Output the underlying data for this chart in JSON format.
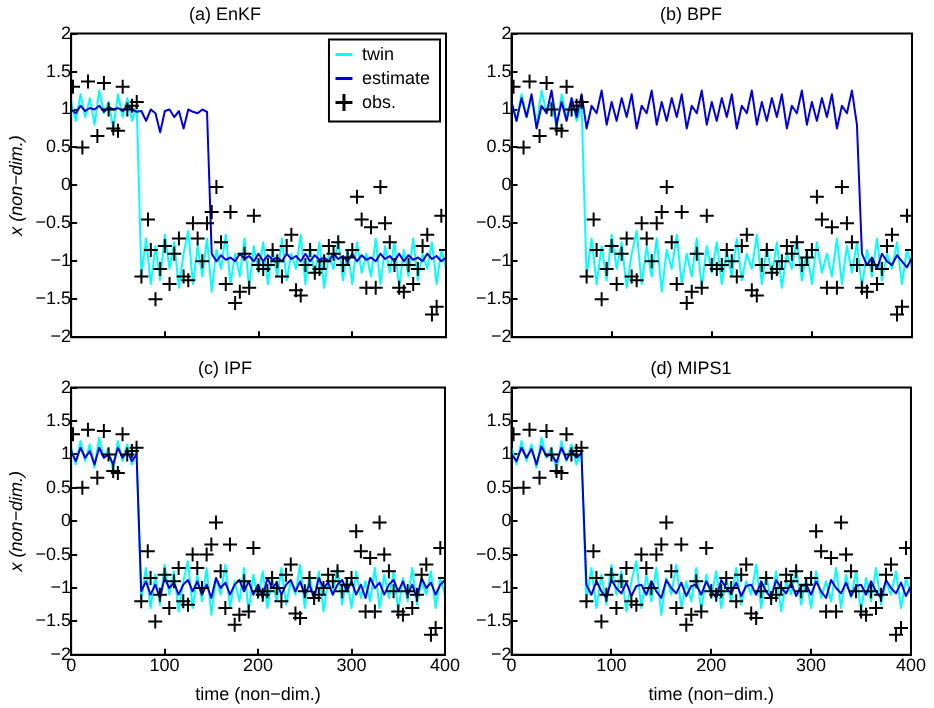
{
  "chart_data": [
    {
      "type": "line",
      "title": "(a) EnKF",
      "ylabel": "x (non−dim.)",
      "xlim": [
        0,
        400
      ],
      "xticks": [
        0,
        100,
        200,
        300,
        400
      ],
      "ylim": [
        -2,
        2
      ],
      "yticks": [
        -2,
        -1.5,
        -1,
        -0.5,
        0,
        0.5,
        1,
        1.5,
        2
      ],
      "tick_labels": "y",
      "grid": false,
      "legend": "top right",
      "x": [
        0,
        5,
        10,
        15,
        20,
        25,
        30,
        35,
        40,
        45,
        50,
        55,
        60,
        65,
        70,
        75,
        80,
        85,
        90,
        95,
        100,
        105,
        110,
        115,
        120,
        125,
        130,
        135,
        140,
        145,
        150,
        155,
        160,
        165,
        170,
        175,
        180,
        185,
        190,
        195,
        200,
        205,
        210,
        215,
        220,
        225,
        230,
        235,
        240,
        245,
        250,
        255,
        260,
        265,
        270,
        275,
        280,
        285,
        290,
        295,
        300,
        305,
        310,
        315,
        320,
        325,
        330,
        335,
        340,
        345,
        350,
        355,
        360,
        365,
        370,
        375,
        380,
        385,
        390,
        395,
        400
      ],
      "series": [
        {
          "name": "twin",
          "color": "#00ffff",
          "values": [
            1.1,
            0.85,
            1.2,
            0.9,
            1.15,
            0.8,
            1.25,
            0.95,
            1.1,
            0.75,
            1.2,
            0.9,
            1.15,
            0.85,
            1.05,
            -1.2,
            -0.7,
            -1.3,
            -0.8,
            -1.25,
            -0.65,
            -1.1,
            -0.75,
            -1.35,
            -0.9,
            -0.6,
            -1.3,
            -0.8,
            -1.2,
            -0.7,
            -1.4,
            -0.85,
            -1.1,
            -0.65,
            -1.3,
            -0.9,
            -1.2,
            -0.7,
            -1.35,
            -0.8,
            -1.15,
            -0.75,
            -1.3,
            -0.85,
            -1.2,
            -0.7,
            -1.25,
            -0.9,
            -1.1,
            -0.65,
            -1.3,
            -0.8,
            -1.2,
            -0.75,
            -1.35,
            -0.9,
            -1.1,
            -0.7,
            -1.25,
            -0.85,
            -1.3,
            -0.75,
            -1.15,
            -0.9,
            -1.2,
            -0.7,
            -1.3,
            -0.8,
            -1.15,
            -0.75,
            -1.35,
            -0.85,
            -1.2,
            -0.7,
            -1.25,
            -0.9,
            -1.1,
            -0.75,
            -1.3,
            -0.85,
            -1.1
          ]
        },
        {
          "name": "estimate",
          "color": "#0000dd",
          "values": [
            1.0,
            0.95,
            1.05,
            0.98,
            1.02,
            1.0,
            1.05,
            0.97,
            1.03,
            1.0,
            1.02,
            0.98,
            1.05,
            1.0,
            0.97,
            0.98,
            0.85,
            1.0,
            0.95,
            0.7,
            0.98,
            1.0,
            0.9,
            0.98,
            0.75,
            1.0,
            0.97,
            0.95,
            1.0,
            0.97,
            -0.9,
            -1.0,
            -0.92,
            -0.98,
            -0.95,
            -1.0,
            -0.9,
            -0.97,
            -0.93,
            -1.0,
            -0.9,
            -1.0,
            -0.92,
            -0.98,
            -0.95,
            -1.0,
            -0.9,
            -0.97,
            -0.93,
            -1.0,
            -0.9,
            -1.0,
            -0.92,
            -0.98,
            -0.95,
            -1.0,
            -0.9,
            -0.97,
            -0.93,
            -1.0,
            -0.9,
            -1.0,
            -0.92,
            -0.98,
            -0.95,
            -1.0,
            -0.9,
            -0.97,
            -0.93,
            -1.0,
            -0.9,
            -1.0,
            -0.92,
            -0.98,
            -0.95,
            -1.0,
            -0.9,
            -0.97,
            -0.93,
            -1.0,
            -0.95
          ]
        },
        {
          "name": "obs.",
          "type": "scatter",
          "marker": "cross",
          "color": "#000000",
          "x": [
            2,
            12,
            18,
            28,
            35,
            40,
            45,
            50,
            55,
            60,
            65,
            70,
            75,
            82,
            85,
            90,
            95,
            100,
            105,
            110,
            115,
            120,
            125,
            130,
            135,
            140,
            145,
            150,
            155,
            160,
            165,
            170,
            175,
            180,
            185,
            190,
            195,
            200,
            205,
            210,
            215,
            220,
            225,
            230,
            235,
            240,
            245,
            250,
            255,
            260,
            265,
            270,
            275,
            280,
            285,
            290,
            295,
            300,
            305,
            310,
            315,
            320,
            325,
            330,
            335,
            340,
            345,
            350,
            355,
            360,
            365,
            370,
            375,
            380,
            385,
            390,
            395,
            400
          ],
          "values": [
            1.3,
            0.5,
            1.37,
            0.65,
            1.35,
            1.0,
            0.75,
            0.72,
            1.3,
            1.0,
            1.05,
            1.1,
            -1.2,
            -0.45,
            -0.85,
            -1.5,
            -1.1,
            -0.8,
            -1.3,
            -0.9,
            -0.7,
            -1.2,
            -1.25,
            -0.5,
            -0.7,
            -1.0,
            -0.5,
            -0.35,
            -0.02,
            -0.75,
            -1.3,
            -0.35,
            -1.55,
            -1.4,
            -0.9,
            -1.35,
            -0.4,
            -1.05,
            -1.1,
            -1.05,
            -0.85,
            -1.0,
            -1.2,
            -0.8,
            -0.65,
            -1.38,
            -1.45,
            -1.05,
            -0.85,
            -1.15,
            -1.1,
            -1.0,
            -0.8,
            -0.9,
            -0.75,
            -1.05,
            -0.95,
            -0.85,
            -0.15,
            -0.45,
            -1.35,
            -0.55,
            -1.35,
            -0.02,
            -0.5,
            -0.75,
            -1.05,
            -1.35,
            -1.4,
            -1.05,
            -1.3,
            -1.1,
            -0.8,
            -0.65,
            -1.7,
            -1.6,
            -0.4,
            -0.85
          ]
        }
      ]
    },
    {
      "type": "line",
      "title": "(b) BPF",
      "xlim": [
        0,
        400
      ],
      "xticks": [
        0,
        100,
        200,
        300,
        400
      ],
      "ylim": [
        -2,
        2
      ],
      "yticks": [
        -2,
        -1.5,
        -1,
        -0.5,
        0,
        0.5,
        1,
        1.5,
        2
      ],
      "tick_labels": "y",
      "grid": false,
      "x": [
        0,
        5,
        10,
        15,
        20,
        25,
        30,
        35,
        40,
        45,
        50,
        55,
        60,
        65,
        70,
        75,
        80,
        85,
        90,
        95,
        100,
        105,
        110,
        115,
        120,
        125,
        130,
        135,
        140,
        145,
        150,
        155,
        160,
        165,
        170,
        175,
        180,
        185,
        190,
        195,
        200,
        205,
        210,
        215,
        220,
        225,
        230,
        235,
        240,
        245,
        250,
        255,
        260,
        265,
        270,
        275,
        280,
        285,
        290,
        295,
        300,
        305,
        310,
        315,
        320,
        325,
        330,
        335,
        340,
        345,
        350,
        355,
        360,
        365,
        370,
        375,
        380,
        385,
        390,
        395,
        400
      ],
      "series": [
        {
          "color": "#00ffff",
          "values": [
            1.1,
            0.85,
            1.2,
            0.9,
            1.15,
            0.8,
            1.25,
            0.95,
            1.1,
            0.75,
            1.2,
            0.9,
            1.15,
            0.85,
            1.05,
            -1.2,
            -0.7,
            -1.3,
            -0.8,
            -1.25,
            -0.65,
            -1.1,
            -0.75,
            -1.35,
            -0.9,
            -0.6,
            -1.3,
            -0.8,
            -1.2,
            -0.7,
            -1.4,
            -0.85,
            -1.1,
            -0.65,
            -1.3,
            -0.9,
            -1.2,
            -0.7,
            -1.35,
            -0.8,
            -1.15,
            -0.75,
            -1.3,
            -0.85,
            -1.2,
            -0.7,
            -1.25,
            -0.9,
            -1.1,
            -0.65,
            -1.3,
            -0.8,
            -1.2,
            -0.75,
            -1.35,
            -0.9,
            -1.1,
            -0.7,
            -1.25,
            -0.85,
            -1.3,
            -0.75,
            -1.15,
            -0.9,
            -1.2,
            -0.7,
            -1.3,
            -0.8,
            -1.15,
            -0.75,
            -1.35,
            -0.85,
            -1.2,
            -0.7,
            -1.25,
            -0.9,
            -1.1,
            -0.75,
            -1.3,
            -0.85,
            -1.1
          ]
        },
        {
          "color": "#0000dd",
          "values": [
            1.1,
            0.85,
            1.15,
            0.9,
            1.2,
            0.75,
            1.05,
            0.95,
            1.25,
            0.8,
            1.1,
            0.85,
            1.15,
            0.9,
            1.2,
            0.75,
            1.05,
            0.95,
            1.25,
            0.8,
            1.1,
            0.85,
            1.15,
            0.9,
            1.2,
            0.75,
            1.05,
            0.95,
            1.25,
            0.8,
            1.1,
            0.85,
            1.15,
            0.9,
            1.2,
            0.75,
            1.05,
            0.95,
            1.25,
            0.8,
            1.1,
            0.85,
            1.15,
            0.9,
            1.2,
            0.75,
            1.05,
            0.95,
            1.25,
            0.8,
            1.1,
            0.85,
            1.15,
            0.9,
            1.2,
            0.75,
            1.05,
            0.95,
            1.25,
            0.8,
            1.1,
            0.85,
            1.15,
            0.9,
            1.2,
            0.75,
            1.05,
            0.95,
            1.25,
            0.8,
            -0.9,
            -1.05,
            -0.95,
            -1.1,
            -0.9,
            -1.0,
            -1.05,
            -0.92,
            -1.0,
            -1.08,
            -0.95
          ]
        },
        {
          "type": "scatter",
          "marker": "cross",
          "color": "#000000",
          "x": [
            2,
            12,
            18,
            28,
            35,
            40,
            45,
            50,
            55,
            60,
            65,
            70,
            75,
            82,
            85,
            90,
            95,
            100,
            105,
            110,
            115,
            120,
            125,
            130,
            135,
            140,
            145,
            150,
            155,
            160,
            165,
            170,
            175,
            180,
            185,
            190,
            195,
            200,
            205,
            210,
            215,
            220,
            225,
            230,
            235,
            240,
            245,
            250,
            255,
            260,
            265,
            270,
            275,
            280,
            285,
            290,
            295,
            300,
            305,
            310,
            315,
            320,
            325,
            330,
            335,
            340,
            345,
            350,
            355,
            360,
            365,
            370,
            375,
            380,
            385,
            390,
            395,
            400
          ],
          "values": [
            1.3,
            0.5,
            1.37,
            0.65,
            1.35,
            1.0,
            0.75,
            0.72,
            1.3,
            1.0,
            1.05,
            1.1,
            -1.2,
            -0.45,
            -0.85,
            -1.5,
            -1.1,
            -0.8,
            -1.3,
            -0.9,
            -0.7,
            -1.2,
            -1.25,
            -0.5,
            -0.7,
            -1.0,
            -0.5,
            -0.35,
            -0.02,
            -0.75,
            -1.3,
            -0.35,
            -1.55,
            -1.4,
            -0.9,
            -1.35,
            -0.4,
            -1.05,
            -1.1,
            -1.05,
            -0.85,
            -1.0,
            -1.2,
            -0.8,
            -0.65,
            -1.38,
            -1.45,
            -1.05,
            -0.85,
            -1.15,
            -1.1,
            -1.0,
            -0.8,
            -0.9,
            -0.75,
            -1.05,
            -0.95,
            -0.85,
            -0.15,
            -0.45,
            -1.35,
            -0.55,
            -1.35,
            -0.02,
            -0.5,
            -0.75,
            -1.05,
            -1.35,
            -1.4,
            -1.05,
            -1.3,
            -1.1,
            -0.8,
            -0.65,
            -1.7,
            -1.6,
            -0.4,
            -0.85
          ]
        }
      ]
    },
    {
      "type": "line",
      "title": "(c) IPF",
      "xlabel": "time (non−dim.)",
      "ylabel": "x (non−dim.)",
      "xlim": [
        0,
        400
      ],
      "xticks": [
        0,
        100,
        200,
        300,
        400
      ],
      "ylim": [
        -2,
        2
      ],
      "yticks": [
        -2,
        -1.5,
        -1,
        -0.5,
        0,
        0.5,
        1,
        1.5,
        2
      ],
      "grid": false,
      "x": [
        0,
        5,
        10,
        15,
        20,
        25,
        30,
        35,
        40,
        45,
        50,
        55,
        60,
        65,
        70,
        75,
        80,
        85,
        90,
        95,
        100,
        105,
        110,
        115,
        120,
        125,
        130,
        135,
        140,
        145,
        150,
        155,
        160,
        165,
        170,
        175,
        180,
        185,
        190,
        195,
        200,
        205,
        210,
        215,
        220,
        225,
        230,
        235,
        240,
        245,
        250,
        255,
        260,
        265,
        270,
        275,
        280,
        285,
        290,
        295,
        300,
        305,
        310,
        315,
        320,
        325,
        330,
        335,
        340,
        345,
        350,
        355,
        360,
        365,
        370,
        375,
        380,
        385,
        390,
        395,
        400
      ],
      "series": [
        {
          "color": "#00ffff",
          "values": [
            1.1,
            0.85,
            1.2,
            0.9,
            1.15,
            0.8,
            1.25,
            0.95,
            1.1,
            0.75,
            1.2,
            0.9,
            1.15,
            0.85,
            1.05,
            -1.2,
            -0.7,
            -1.3,
            -0.8,
            -1.25,
            -0.65,
            -1.1,
            -0.75,
            -1.35,
            -0.9,
            -0.6,
            -1.3,
            -0.8,
            -1.2,
            -0.7,
            -1.4,
            -0.85,
            -1.1,
            -0.65,
            -1.3,
            -0.9,
            -1.2,
            -0.7,
            -1.35,
            -0.8,
            -1.15,
            -0.75,
            -1.3,
            -0.85,
            -1.2,
            -0.7,
            -1.25,
            -0.9,
            -1.1,
            -0.65,
            -1.3,
            -0.8,
            -1.2,
            -0.75,
            -1.35,
            -0.9,
            -1.1,
            -0.7,
            -1.25,
            -0.85,
            -1.3,
            -0.75,
            -1.15,
            -0.9,
            -1.2,
            -0.7,
            -1.3,
            -0.8,
            -1.15,
            -0.75,
            -1.35,
            -0.85,
            -1.2,
            -0.7,
            -1.25,
            -0.9,
            -1.1,
            -0.75,
            -1.3,
            -0.85,
            -1.1
          ]
        },
        {
          "color": "#0000dd",
          "values": [
            1.05,
            0.9,
            1.1,
            0.95,
            1.05,
            0.85,
            1.1,
            0.95,
            1.0,
            0.85,
            1.1,
            0.95,
            1.05,
            0.9,
            1.0,
            -1.05,
            -0.9,
            -1.1,
            -0.95,
            -1.15,
            -0.85,
            -1.0,
            -0.92,
            -1.1,
            -0.95,
            -0.88,
            -1.05,
            -0.9,
            -1.1,
            -0.95,
            -1.15,
            -0.85,
            -1.0,
            -0.92,
            -1.1,
            -0.95,
            -0.88,
            -1.05,
            -0.9,
            -1.1,
            -0.95,
            -1.15,
            -0.85,
            -1.0,
            -0.92,
            -1.1,
            -0.95,
            -0.88,
            -1.05,
            -0.9,
            -1.1,
            -0.95,
            -1.15,
            -0.85,
            -1.0,
            -0.92,
            -1.1,
            -0.95,
            -0.88,
            -1.05,
            -0.9,
            -1.1,
            -0.95,
            -1.15,
            -0.85,
            -1.0,
            -0.92,
            -1.1,
            -0.95,
            -0.88,
            -1.05,
            -0.9,
            -1.1,
            -0.95,
            -1.15,
            -0.85,
            -1.0,
            -0.92,
            -1.1,
            -0.95,
            -0.88
          ]
        },
        {
          "type": "scatter",
          "marker": "cross",
          "color": "#000000",
          "x": [
            2,
            12,
            18,
            28,
            35,
            40,
            45,
            50,
            55,
            60,
            65,
            70,
            75,
            82,
            85,
            90,
            95,
            100,
            105,
            110,
            115,
            120,
            125,
            130,
            135,
            140,
            145,
            150,
            155,
            160,
            165,
            170,
            175,
            180,
            185,
            190,
            195,
            200,
            205,
            210,
            215,
            220,
            225,
            230,
            235,
            240,
            245,
            250,
            255,
            260,
            265,
            270,
            275,
            280,
            285,
            290,
            295,
            300,
            305,
            310,
            315,
            320,
            325,
            330,
            335,
            340,
            345,
            350,
            355,
            360,
            365,
            370,
            375,
            380,
            385,
            390,
            395,
            400
          ],
          "values": [
            1.3,
            0.5,
            1.37,
            0.65,
            1.35,
            1.0,
            0.75,
            0.72,
            1.3,
            1.0,
            1.05,
            1.1,
            -1.2,
            -0.45,
            -0.85,
            -1.5,
            -1.1,
            -0.8,
            -1.3,
            -0.9,
            -0.7,
            -1.2,
            -1.25,
            -0.5,
            -0.7,
            -1.0,
            -0.5,
            -0.35,
            -0.02,
            -0.75,
            -1.3,
            -0.35,
            -1.55,
            -1.4,
            -0.9,
            -1.35,
            -0.4,
            -1.05,
            -1.1,
            -1.05,
            -0.85,
            -1.0,
            -1.2,
            -0.8,
            -0.65,
            -1.38,
            -1.45,
            -1.05,
            -0.85,
            -1.15,
            -1.1,
            -1.0,
            -0.8,
            -0.9,
            -0.75,
            -1.05,
            -0.95,
            -0.85,
            -0.15,
            -0.45,
            -1.35,
            -0.55,
            -1.35,
            -0.02,
            -0.5,
            -0.75,
            -1.05,
            -1.35,
            -1.4,
            -1.05,
            -1.3,
            -1.1,
            -0.8,
            -0.65,
            -1.7,
            -1.6,
            -0.4,
            -0.85
          ]
        }
      ]
    },
    {
      "type": "line",
      "title": "(d) MIPS1",
      "xlabel": "time (non−dim.)",
      "xlim": [
        0,
        400
      ],
      "xticks": [
        0,
        100,
        200,
        300,
        400
      ],
      "ylim": [
        -2,
        2
      ],
      "yticks": [
        -2,
        -1.5,
        -1,
        -0.5,
        0,
        0.5,
        1,
        1.5,
        2
      ],
      "grid": false,
      "x": [
        0,
        5,
        10,
        15,
        20,
        25,
        30,
        35,
        40,
        45,
        50,
        55,
        60,
        65,
        70,
        75,
        80,
        85,
        90,
        95,
        100,
        105,
        110,
        115,
        120,
        125,
        130,
        135,
        140,
        145,
        150,
        155,
        160,
        165,
        170,
        175,
        180,
        185,
        190,
        195,
        200,
        205,
        210,
        215,
        220,
        225,
        230,
        235,
        240,
        245,
        250,
        255,
        260,
        265,
        270,
        275,
        280,
        285,
        290,
        295,
        300,
        305,
        310,
        315,
        320,
        325,
        330,
        335,
        340,
        345,
        350,
        355,
        360,
        365,
        370,
        375,
        380,
        385,
        390,
        395,
        400
      ],
      "series": [
        {
          "color": "#00ffff",
          "values": [
            1.1,
            0.85,
            1.2,
            0.9,
            1.15,
            0.8,
            1.25,
            0.95,
            1.1,
            0.75,
            1.2,
            0.9,
            1.15,
            0.85,
            1.05,
            -1.2,
            -0.7,
            -1.3,
            -0.8,
            -1.25,
            -0.65,
            -1.1,
            -0.75,
            -1.35,
            -0.9,
            -0.6,
            -1.3,
            -0.8,
            -1.2,
            -0.7,
            -1.4,
            -0.85,
            -1.1,
            -0.65,
            -1.3,
            -0.9,
            -1.2,
            -0.7,
            -1.35,
            -0.8,
            -1.15,
            -0.75,
            -1.3,
            -0.85,
            -1.2,
            -0.7,
            -1.25,
            -0.9,
            -1.1,
            -0.65,
            -1.3,
            -0.8,
            -1.2,
            -0.75,
            -1.35,
            -0.9,
            -1.1,
            -0.7,
            -1.25,
            -0.85,
            -1.3,
            -0.75,
            -1.15,
            -0.9,
            -1.2,
            -0.7,
            -1.3,
            -0.8,
            -1.15,
            -0.75,
            -1.35,
            -0.85,
            -1.2,
            -0.7,
            -1.25,
            -0.9,
            -1.1,
            -0.75,
            -1.3,
            -0.85,
            -1.1
          ]
        },
        {
          "color": "#0000dd",
          "values": [
            1.0,
            0.9,
            1.1,
            0.95,
            1.08,
            0.85,
            1.12,
            0.97,
            1.0,
            0.88,
            1.1,
            0.92,
            1.05,
            0.95,
            1.02,
            -0.95,
            -1.1,
            -0.9,
            -1.05,
            -1.15,
            -0.88,
            -1.0,
            -1.08,
            -0.92,
            -1.12,
            -0.97,
            -0.95,
            -1.1,
            -0.9,
            -1.05,
            -1.15,
            -0.88,
            -1.0,
            -1.08,
            -0.92,
            -1.12,
            -0.97,
            -0.95,
            -1.1,
            -0.9,
            -1.05,
            -1.15,
            -0.88,
            -1.0,
            -1.08,
            -0.92,
            -1.12,
            -0.97,
            -0.95,
            -1.1,
            -0.9,
            -1.05,
            -1.15,
            -0.88,
            -1.0,
            -1.08,
            -0.92,
            -1.12,
            -0.97,
            -0.95,
            -1.1,
            -0.9,
            -1.05,
            -1.15,
            -0.88,
            -1.0,
            -1.08,
            -0.92,
            -1.12,
            -0.97,
            -0.95,
            -1.1,
            -0.9,
            -1.05,
            -1.15,
            -0.88,
            -1.0,
            -1.08,
            -0.92,
            -1.12,
            -0.97
          ]
        },
        {
          "type": "scatter",
          "marker": "cross",
          "color": "#000000",
          "x": [
            2,
            12,
            18,
            28,
            35,
            40,
            45,
            50,
            55,
            60,
            65,
            70,
            75,
            82,
            85,
            90,
            95,
            100,
            105,
            110,
            115,
            120,
            125,
            130,
            135,
            140,
            145,
            150,
            155,
            160,
            165,
            170,
            175,
            180,
            185,
            190,
            195,
            200,
            205,
            210,
            215,
            220,
            225,
            230,
            235,
            240,
            245,
            250,
            255,
            260,
            265,
            270,
            275,
            280,
            285,
            290,
            295,
            300,
            305,
            310,
            315,
            320,
            325,
            330,
            335,
            340,
            345,
            350,
            355,
            360,
            365,
            370,
            375,
            380,
            385,
            390,
            395,
            400
          ],
          "values": [
            1.3,
            0.5,
            1.37,
            0.65,
            1.35,
            1.0,
            0.75,
            0.72,
            1.3,
            1.0,
            1.05,
            1.1,
            -1.2,
            -0.45,
            -0.85,
            -1.5,
            -1.1,
            -0.8,
            -1.3,
            -0.9,
            -0.7,
            -1.2,
            -1.25,
            -0.5,
            -0.7,
            -1.0,
            -0.5,
            -0.35,
            -0.02,
            -0.75,
            -1.3,
            -0.35,
            -1.55,
            -1.4,
            -0.9,
            -1.35,
            -0.4,
            -1.05,
            -1.1,
            -1.05,
            -0.85,
            -1.0,
            -1.2,
            -0.8,
            -0.65,
            -1.38,
            -1.45,
            -1.05,
            -0.85,
            -1.15,
            -1.1,
            -1.0,
            -0.8,
            -0.9,
            -0.75,
            -1.05,
            -0.95,
            -0.85,
            -0.15,
            -0.45,
            -1.35,
            -0.55,
            -1.35,
            -0.02,
            -0.5,
            -0.75,
            -1.05,
            -1.35,
            -1.4,
            -1.05,
            -1.3,
            -1.1,
            -0.8,
            -0.65,
            -1.7,
            -1.6,
            -0.4,
            -0.85
          ]
        }
      ]
    }
  ]
}
